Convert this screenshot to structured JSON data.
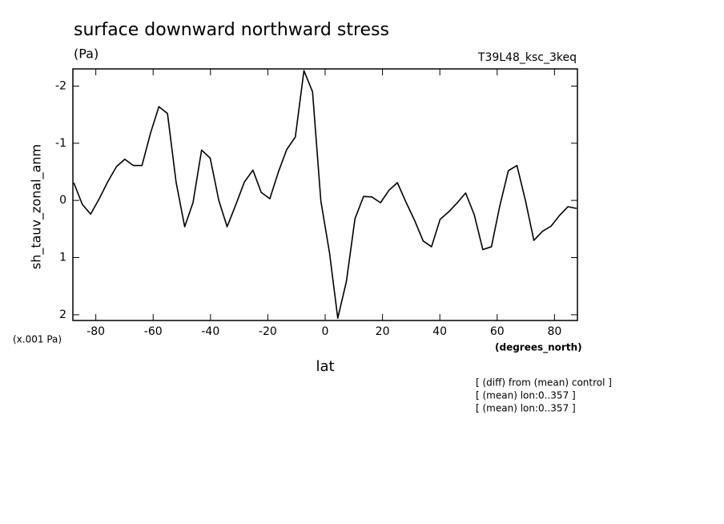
{
  "chart_data": {
    "type": "line",
    "title": "surface downward northward stress",
    "units": "(Pa)",
    "run_label": "T39L48_ksc_3keq",
    "y_label": "sh_tauv_zonal_anm",
    "y_scale_note": "(x.001 Pa)",
    "x_label": "lat",
    "x_units": "(degrees_north)",
    "notes": [
      "[ (diff) from (mean) control ]",
      "[ (mean) lon:0..357 ]",
      "[ (mean) lon:0..357 ]"
    ],
    "color": "#000000",
    "x": [
      -87.7,
      -84.7,
      -81.8,
      -78.8,
      -75.8,
      -72.8,
      -69.9,
      -66.9,
      -63.9,
      -60.9,
      -58.0,
      -55.0,
      -52.0,
      -49.0,
      -46.1,
      -43.1,
      -40.1,
      -37.1,
      -34.2,
      -31.2,
      -28.2,
      -25.2,
      -22.3,
      -19.3,
      -16.3,
      -13.4,
      -10.4,
      -7.4,
      -4.4,
      -1.5,
      1.5,
      4.4,
      7.4,
      10.4,
      13.4,
      16.3,
      19.3,
      22.3,
      25.2,
      28.2,
      31.2,
      34.2,
      37.1,
      40.1,
      43.1,
      46.1,
      49.0,
      52.0,
      55.0,
      58.0,
      60.9,
      63.9,
      66.9,
      69.9,
      72.8,
      75.8,
      78.8,
      81.8,
      84.7,
      87.7
    ],
    "values": [
      -0.31,
      0.07,
      0.24,
      -0.03,
      -0.33,
      -0.59,
      -0.72,
      -0.61,
      -0.61,
      -1.18,
      -1.64,
      -1.52,
      -0.32,
      0.46,
      0.04,
      -0.88,
      -0.74,
      0,
      0.46,
      0.08,
      -0.32,
      -0.53,
      -0.14,
      -0.03,
      -0.5,
      -0.89,
      -1.11,
      -2.27,
      -1.9,
      0.01,
      0.91,
      2.06,
      1.42,
      0.32,
      -0.07,
      -0.06,
      0.04,
      -0.18,
      -0.31,
      0.03,
      0.35,
      0.71,
      0.81,
      0.33,
      0.2,
      0.04,
      -0.13,
      0.25,
      0.86,
      0.81,
      0.1,
      -0.52,
      -0.61,
      0.01,
      0.7,
      0.54,
      0.45,
      0.26,
      0.11,
      0.14
    ],
    "xlim": [
      -88,
      88
    ],
    "xticks": [
      -80,
      -60,
      -40,
      -20,
      0,
      20,
      40,
      60,
      80
    ],
    "ylim": [
      2.1,
      -2.3
    ],
    "yticks": [
      2,
      1,
      0,
      -1,
      -2
    ]
  }
}
